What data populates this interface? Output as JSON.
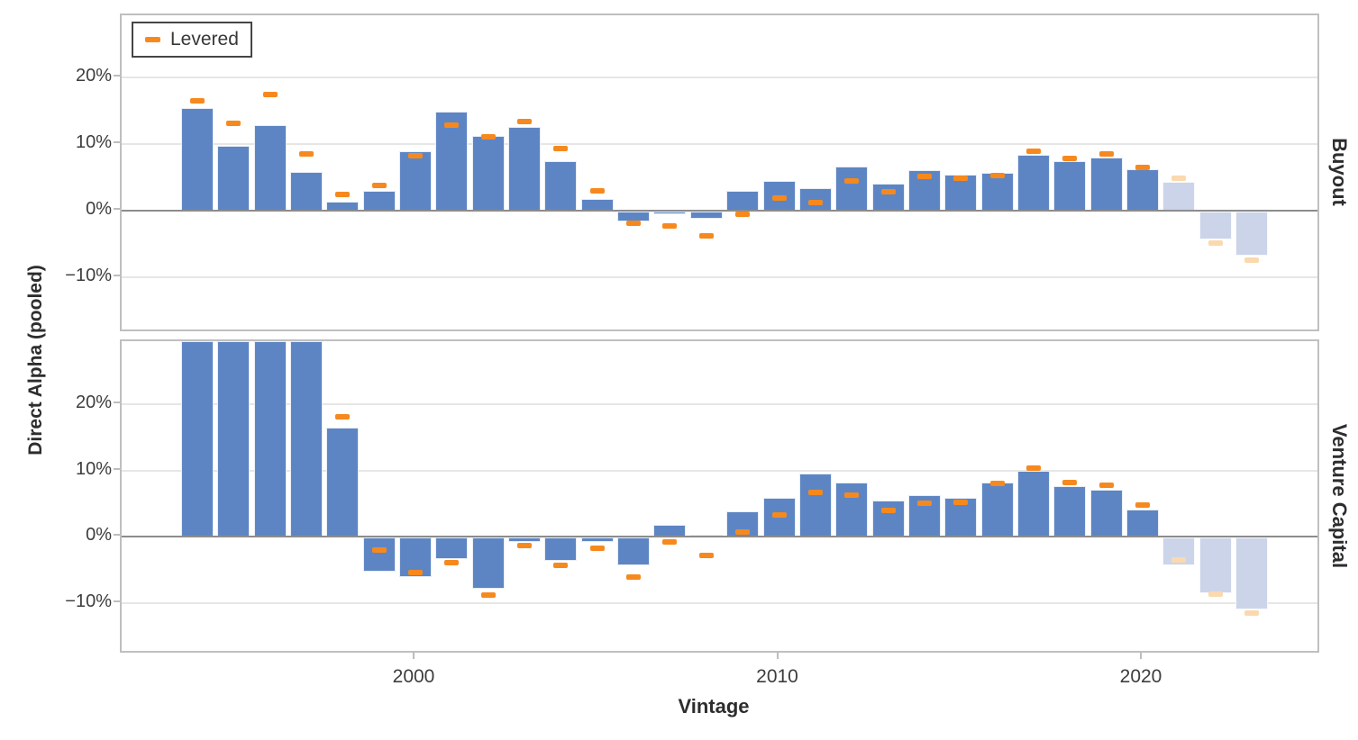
{
  "chart_data": {
    "type": "bar",
    "title": "",
    "xlabel": "Vintage",
    "ylabel": "Direct Alpha (pooled)",
    "legend_label": "Levered",
    "ylim": [
      -18.3,
      29.4
    ],
    "y_ticks": [
      20,
      10,
      0,
      -10
    ],
    "y_tick_labels": [
      "20%",
      "10%",
      "0%",
      "−10%"
    ],
    "x_ticks": [
      2000,
      2010,
      2020
    ],
    "x_tick_labels": [
      "2000",
      "2010",
      "2020"
    ],
    "grid": "horizontal",
    "legend_position": "top-left",
    "faded_years": [
      2021,
      2022,
      2023
    ],
    "clipped_note": "Venture Capital 1994-1997 bars exceed the visible y-range and are clipped at the panel top",
    "colors": {
      "bar": "#5E85C3",
      "bar_faded": "#CCD4EA",
      "levered": "#F6891E",
      "levered_faded": "#FAD9AE",
      "gridline": "#E6E6E6",
      "zero_line": "#8C8C8C",
      "panel_border": "#BFBFBF"
    },
    "years": [
      1994,
      1995,
      1996,
      1997,
      1998,
      1999,
      2000,
      2001,
      2002,
      2003,
      2004,
      2005,
      2006,
      2007,
      2008,
      2009,
      2010,
      2011,
      2012,
      2013,
      2014,
      2015,
      2016,
      2017,
      2018,
      2019,
      2020,
      2021,
      2022,
      2023
    ],
    "facets": [
      {
        "label": "Buyout",
        "alpha": [
          15.4,
          9.8,
          12.8,
          5.8,
          1.4,
          3.0,
          8.9,
          14.9,
          11.3,
          12.6,
          7.4,
          1.8,
          -1.4,
          -0.4,
          -1.0,
          3.0,
          4.5,
          3.4,
          6.6,
          4.1,
          6.1,
          5.5,
          5.7,
          8.4,
          7.5,
          8.0,
          6.2,
          4.3,
          -4.2,
          -6.6
        ],
        "levered": [
          16.5,
          13.1,
          17.4,
          8.6,
          2.5,
          3.8,
          8.3,
          12.9,
          11.1,
          13.4,
          9.4,
          3.0,
          -1.8,
          -2.2,
          -3.8,
          -0.5,
          1.9,
          1.3,
          4.5,
          2.9,
          5.2,
          4.9,
          5.3,
          9.0,
          7.9,
          8.5,
          6.5,
          4.9,
          -4.8,
          -7.4
        ]
      },
      {
        "label": "Venture Capital",
        "alpha": [
          null,
          null,
          null,
          null,
          16.4,
          -5.2,
          -6.0,
          -3.3,
          -7.7,
          -0.7,
          -3.6,
          -0.7,
          -4.2,
          1.8,
          0.3,
          3.8,
          5.9,
          9.5,
          8.2,
          5.4,
          6.3,
          5.8,
          8.2,
          9.9,
          7.6,
          7.1,
          4.1,
          -4.2,
          -8.4,
          -10.9
        ],
        "levered": [
          null,
          null,
          null,
          null,
          18.1,
          -2.0,
          -5.4,
          -3.9,
          -8.8,
          -1.3,
          -4.4,
          -1.8,
          -6.1,
          -0.8,
          -2.8,
          0.7,
          3.2,
          6.7,
          6.3,
          4.0,
          5.1,
          5.2,
          8.0,
          10.3,
          8.2,
          7.8,
          4.8,
          -3.5,
          -8.7,
          -11.6
        ]
      }
    ]
  }
}
